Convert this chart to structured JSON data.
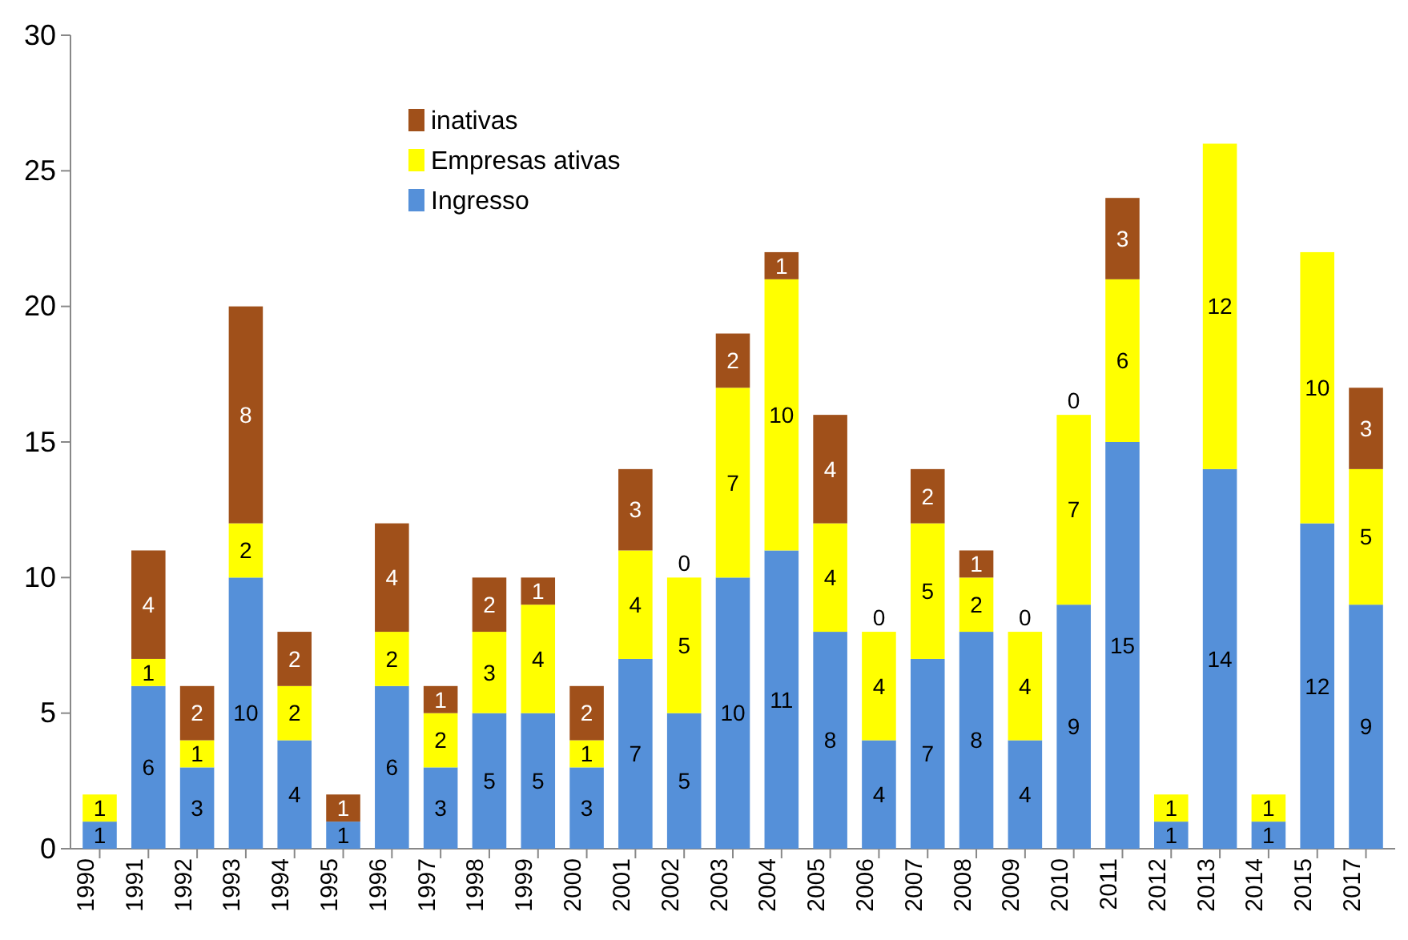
{
  "chart_data": {
    "type": "bar",
    "stacked": true,
    "categories": [
      "1990",
      "1991",
      "1992",
      "1993",
      "1994",
      "1995",
      "1996",
      "1997",
      "1998",
      "1999",
      "2000",
      "2001",
      "2002",
      "2003",
      "2004",
      "2005",
      "2006",
      "2007",
      "2008",
      "2009",
      "2010",
      "2011",
      "2012",
      "2013",
      "2014",
      "2015",
      "2017"
    ],
    "series": [
      {
        "name": "Ingresso",
        "color": "#5590d9",
        "values": [
          1,
          6,
          3,
          10,
          4,
          1,
          6,
          3,
          5,
          5,
          3,
          7,
          5,
          10,
          11,
          8,
          4,
          7,
          8,
          4,
          9,
          15,
          1,
          14,
          1,
          12,
          9
        ],
        "value_labels": [
          "1",
          "6",
          "3",
          "10",
          "4",
          "1",
          "6",
          "3",
          "5",
          "5",
          "3",
          "7",
          "5",
          "10",
          "11",
          "8",
          "4",
          "7",
          "8",
          "4",
          "9",
          "15",
          "1",
          "14",
          "1",
          "12",
          "9"
        ]
      },
      {
        "name": "Empresas ativas",
        "color": "#ffff00",
        "values": [
          1,
          1,
          1,
          2,
          2,
          0,
          2,
          2,
          3,
          4,
          1,
          4,
          5,
          7,
          10,
          4,
          4,
          5,
          2,
          4,
          7,
          6,
          1,
          12,
          1,
          10,
          5
        ],
        "value_labels": [
          "1",
          "1",
          "1",
          "2",
          "2",
          null,
          "2",
          "2",
          "3",
          "4",
          "1",
          "4",
          "5",
          "7",
          "10",
          "4",
          "4",
          "5",
          "2",
          "4",
          "7",
          "6",
          "1",
          "12",
          "1",
          "10",
          "5"
        ]
      },
      {
        "name": "inativas",
        "color": "#a0501a",
        "values": [
          0,
          4,
          2,
          8,
          2,
          1,
          4,
          1,
          2,
          1,
          2,
          3,
          0,
          2,
          1,
          4,
          0,
          2,
          1,
          0,
          0,
          3,
          0,
          0,
          0,
          0,
          3
        ],
        "value_labels": [
          null,
          "4",
          "2",
          "8",
          "2",
          "1",
          "4",
          "1",
          "2",
          "1",
          "2",
          "3",
          "0",
          "2",
          "1",
          "4",
          "0",
          "2",
          "1",
          "0",
          "0",
          "3",
          null,
          null,
          null,
          null,
          "3"
        ]
      }
    ],
    "ylim": [
      0,
      30
    ],
    "yticks": [
      0,
      5,
      10,
      15,
      20,
      25,
      30
    ],
    "legend": "top left"
  }
}
